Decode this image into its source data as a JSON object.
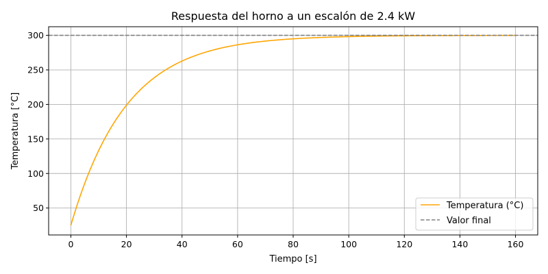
{
  "chart_data": {
    "type": "line",
    "title": "Respuesta del horno a un escalón de 2.4 kW",
    "xlabel": "Tiempo [s]",
    "ylabel": "Temperatura [°C]",
    "xlim": [
      -8,
      168
    ],
    "ylim": [
      11,
      312.5
    ],
    "xticks": [
      0,
      20,
      40,
      60,
      80,
      100,
      120,
      140,
      160
    ],
    "yticks": [
      50,
      100,
      150,
      200,
      250,
      300
    ],
    "grid": true,
    "legend_position": "lower-right",
    "series": [
      {
        "name": "Temperatura (°C)",
        "style": "solid",
        "color": "#ffa500",
        "model": {
          "initial": 25,
          "final": 300,
          "time_constant_s": 20,
          "t_start": 0,
          "t_end": 160
        }
      },
      {
        "name": "Valor final",
        "style": "dashed",
        "color": "#808080",
        "value": 300
      }
    ]
  }
}
